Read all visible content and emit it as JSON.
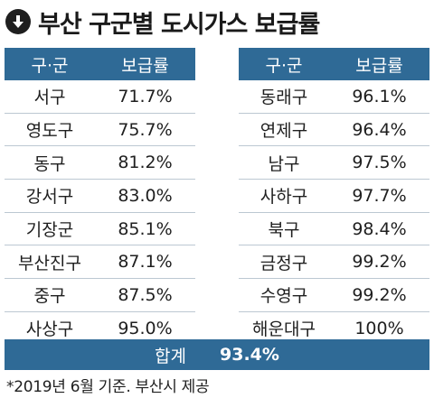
{
  "title": "부산 구군별 도시가스 보급률",
  "icon": "down-arrow-circle-icon",
  "colors": {
    "header_bg": "#2f6a96",
    "header_text": "#ffffff"
  },
  "table": {
    "headers": [
      "구·군",
      "보급률"
    ],
    "left_rows": [
      {
        "name": "서구",
        "rate": "71.7%"
      },
      {
        "name": "영도구",
        "rate": "75.7%"
      },
      {
        "name": "동구",
        "rate": "81.2%"
      },
      {
        "name": "강서구",
        "rate": "83.0%"
      },
      {
        "name": "기장군",
        "rate": "85.1%"
      },
      {
        "name": "부산진구",
        "rate": "87.1%"
      },
      {
        "name": "중구",
        "rate": "87.5%"
      },
      {
        "name": "사상구",
        "rate": "95.0%"
      }
    ],
    "right_rows": [
      {
        "name": "동래구",
        "rate": "96.1%"
      },
      {
        "name": "연제구",
        "rate": "96.4%"
      },
      {
        "name": "남구",
        "rate": "97.5%"
      },
      {
        "name": "사하구",
        "rate": "97.7%"
      },
      {
        "name": "북구",
        "rate": "98.4%"
      },
      {
        "name": "금정구",
        "rate": "99.2%"
      },
      {
        "name": "수영구",
        "rate": "99.2%"
      },
      {
        "name": "해운대구",
        "rate": "100%"
      }
    ]
  },
  "total": {
    "label": "합계",
    "value": "93.4%"
  },
  "footnote": "*2019년 6월 기준. 부산시 제공"
}
